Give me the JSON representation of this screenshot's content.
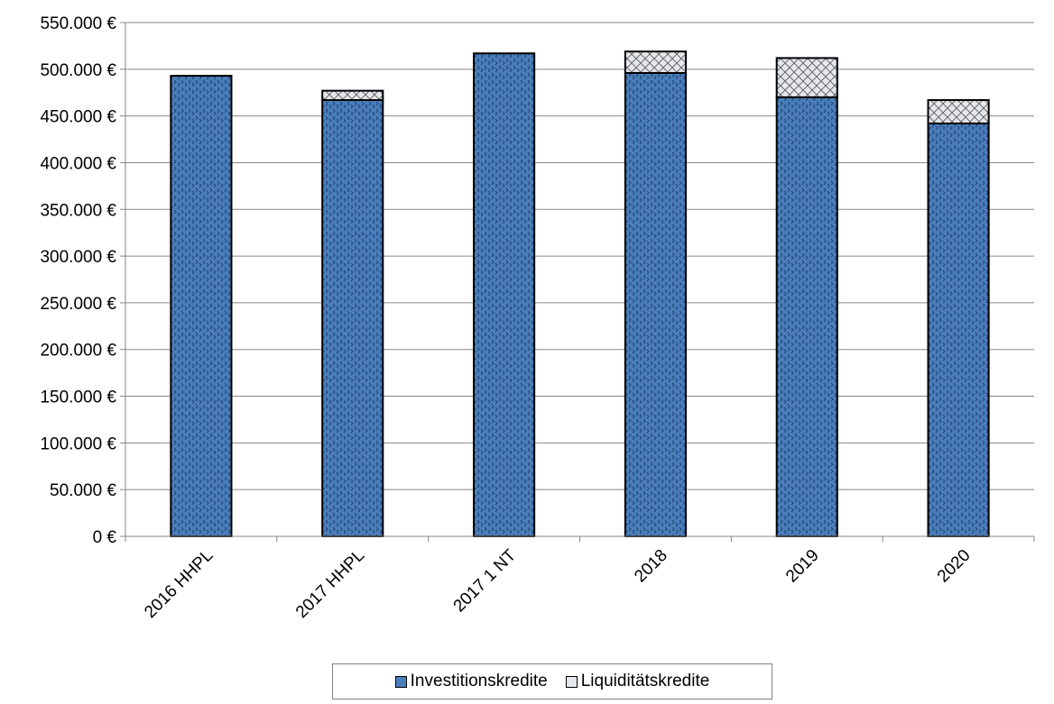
{
  "chart_data": {
    "type": "bar",
    "stacked": true,
    "categories": [
      "2016 HHPL",
      "2017 HHPL",
      "2017 1 NT",
      "2018",
      "2019",
      "2020"
    ],
    "series": [
      {
        "name": "Investitionskredite",
        "values": [
          493000,
          467000,
          517000,
          496000,
          470000,
          442000
        ],
        "color": "#4a7ebb"
      },
      {
        "name": "Liquiditätskredite",
        "values": [
          0,
          10000,
          0,
          23000,
          42000,
          25000
        ],
        "color": "#d9dde3"
      }
    ],
    "ylim": [
      0,
      550000
    ],
    "yticks": [
      "0 €",
      "50.000 €",
      "100.000 €",
      "150.000 €",
      "200.000 €",
      "250.000 €",
      "300.000 €",
      "350.000 €",
      "400.000 €",
      "450.000 €",
      "500.000 €",
      "550.000 €"
    ],
    "grid": true,
    "legend_position": "bottom",
    "title": "",
    "xlabel": "",
    "ylabel": ""
  }
}
